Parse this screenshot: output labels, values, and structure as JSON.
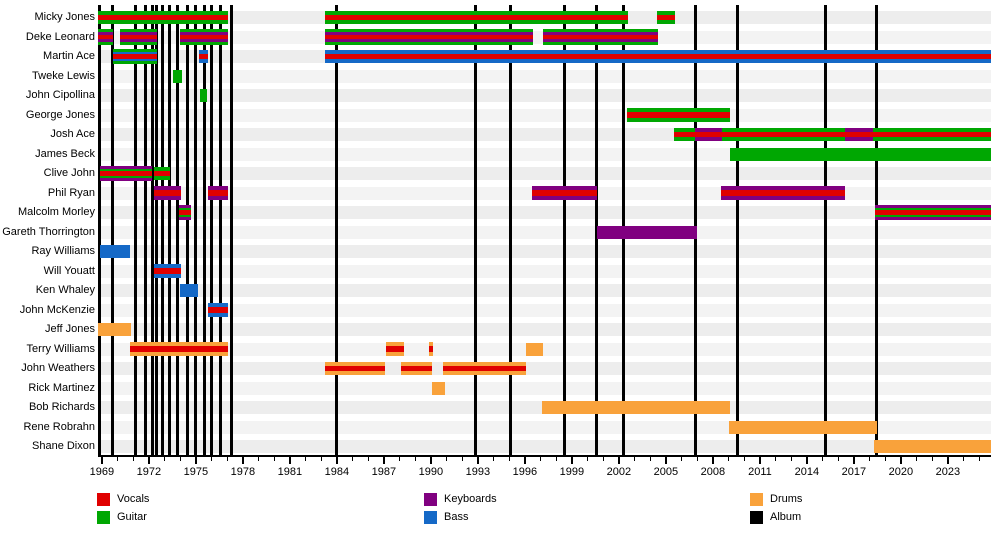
{
  "chart_data": {
    "type": "timeline_gantt",
    "title": "",
    "xlabel": "",
    "ylabel": "",
    "axis": {
      "start": 1968.75,
      "end": 2025.75,
      "major_tick_years": [
        1969,
        1972,
        1975,
        1978,
        1981,
        1984,
        1987,
        1990,
        1993,
        1996,
        1999,
        2002,
        2005,
        2008,
        2011,
        2014,
        2017,
        2020,
        2023
      ],
      "minor_tick_step": 1,
      "grid": false
    },
    "colors": {
      "vocals": "#e00000",
      "guitar": "#00a702",
      "keyboards": "#800080",
      "bass": "#1569c7",
      "drums": "#f9a23b",
      "album": "#000000"
    },
    "album_release_years": [
      1968.85,
      1969.65,
      1971.15,
      1971.8,
      1972.2,
      1972.5,
      1972.85,
      1973.3,
      1973.8,
      1974.45,
      1974.95,
      1975.55,
      1976.0,
      1976.55,
      1977.3,
      1984.0,
      1992.85,
      1995.1,
      1998.55,
      2000.6,
      2002.3,
      2006.9,
      2009.55,
      2015.2,
      2018.45
    ],
    "members": [
      {
        "name": "Micky Jones",
        "stints": [
          {
            "start": 1968.75,
            "end": 1977.05,
            "stripes": [
              "guitar",
              "vocals",
              "guitar"
            ]
          },
          {
            "start": 1983.25,
            "end": 2002.55,
            "stripes": [
              "guitar",
              "vocals",
              "guitar"
            ]
          },
          {
            "start": 2004.4,
            "end": 2005.6,
            "stripes": [
              "guitar",
              "vocals",
              "guitar"
            ]
          }
        ]
      },
      {
        "name": "Deke Leonard",
        "stints": [
          {
            "start": 1968.75,
            "end": 1969.7,
            "stripes": [
              "guitar",
              "keyboards",
              "vocals",
              "keyboards",
              "guitar"
            ]
          },
          {
            "start": 1970.15,
            "end": 1972.5,
            "stripes": [
              "guitar",
              "keyboards",
              "vocals",
              "keyboards",
              "guitar"
            ]
          },
          {
            "start": 1974.0,
            "end": 1977.05,
            "stripes": [
              "guitar",
              "keyboards",
              "vocals",
              "keyboards",
              "guitar"
            ]
          },
          {
            "start": 1983.25,
            "end": 1996.5,
            "stripes": [
              "guitar",
              "keyboards",
              "vocals",
              "keyboards",
              "guitar"
            ]
          },
          {
            "start": 1997.15,
            "end": 2004.5,
            "stripes": [
              "guitar",
              "keyboards",
              "vocals",
              "keyboards",
              "guitar"
            ]
          }
        ]
      },
      {
        "name": "Martin Ace",
        "stints": [
          {
            "start": 1969.7,
            "end": 1972.5,
            "stripes": [
              "guitar",
              "bass",
              "vocals",
              "bass",
              "guitar"
            ]
          },
          {
            "start": 1975.2,
            "end": 1975.8,
            "stripes": [
              "bass",
              "vocals",
              "bass"
            ]
          },
          {
            "start": 1983.25,
            "end": 2025.75,
            "stripes": [
              "bass",
              "vocals",
              "bass"
            ]
          }
        ]
      },
      {
        "name": "Tweke Lewis",
        "stints": [
          {
            "start": 1973.55,
            "end": 1974.1,
            "stripes": [
              "guitar"
            ]
          }
        ]
      },
      {
        "name": "John Cipollina",
        "stints": [
          {
            "start": 1975.25,
            "end": 1975.7,
            "stripes": [
              "guitar"
            ]
          }
        ]
      },
      {
        "name": "George Jones",
        "stints": [
          {
            "start": 2002.5,
            "end": 2009.1,
            "stripes": [
              "guitar",
              "vocals",
              "guitar"
            ]
          }
        ]
      },
      {
        "name": "Josh Ace",
        "stints": [
          {
            "start": 2005.5,
            "end": 2025.75,
            "stripes": [
              "guitar",
              "vocals",
              "guitar"
            ]
          },
          {
            "start": 2006.85,
            "end": 2008.55,
            "stripes": [
              "keyboards",
              "vocals",
              "keyboards"
            ]
          },
          {
            "start": 2016.4,
            "end": 2018.2,
            "stripes": [
              "keyboards",
              "vocals",
              "keyboards"
            ]
          }
        ]
      },
      {
        "name": "James Beck",
        "stints": [
          {
            "start": 2009.1,
            "end": 2025.75,
            "stripes": [
              "guitar"
            ]
          }
        ]
      },
      {
        "name": "Clive John",
        "stints": [
          {
            "start": 1968.85,
            "end": 1972.2,
            "stripes": [
              "keyboards",
              "guitar",
              "vocals",
              "guitar",
              "keyboards"
            ]
          },
          {
            "start": 1972.35,
            "end": 1973.35,
            "stripes": [
              "guitar",
              "vocals",
              "guitar"
            ]
          }
        ]
      },
      {
        "name": "Phil Ryan",
        "stints": [
          {
            "start": 1972.35,
            "end": 1974.05,
            "stripes": [
              "keyboards",
              "vocals",
              "keyboards"
            ]
          },
          {
            "start": 1975.8,
            "end": 1977.05,
            "stripes": [
              "keyboards",
              "vocals",
              "keyboards"
            ]
          },
          {
            "start": 1996.45,
            "end": 2000.6,
            "stripes": [
              "keyboards",
              "vocals",
              "keyboards"
            ]
          },
          {
            "start": 2008.5,
            "end": 2016.4,
            "stripes": [
              "keyboards",
              "vocals",
              "keyboards"
            ]
          }
        ]
      },
      {
        "name": "Malcolm Morley",
        "stints": [
          {
            "start": 1973.9,
            "end": 1974.7,
            "stripes": [
              "keyboards",
              "guitar",
              "vocals",
              "guitar",
              "keyboards"
            ]
          },
          {
            "start": 2018.35,
            "end": 2025.75,
            "stripes": [
              "keyboards",
              "guitar",
              "vocals",
              "guitar",
              "keyboards"
            ]
          }
        ]
      },
      {
        "name": "Gareth Thorrington",
        "stints": [
          {
            "start": 2000.6,
            "end": 2007.0,
            "stripes": [
              "keyboards"
            ]
          }
        ]
      },
      {
        "name": "Ray Williams",
        "stints": [
          {
            "start": 1968.85,
            "end": 1970.8,
            "stripes": [
              "bass"
            ]
          }
        ]
      },
      {
        "name": "Will Youatt",
        "stints": [
          {
            "start": 1972.35,
            "end": 1974.05,
            "stripes": [
              "bass",
              "vocals",
              "bass"
            ]
          }
        ]
      },
      {
        "name": "Ken Whaley",
        "stints": [
          {
            "start": 1974.0,
            "end": 1975.15,
            "stripes": [
              "bass"
            ]
          }
        ]
      },
      {
        "name": "John McKenzie",
        "stints": [
          {
            "start": 1975.8,
            "end": 1977.05,
            "stripes": [
              "bass",
              "vocals",
              "bass"
            ]
          }
        ]
      },
      {
        "name": "Jeff Jones",
        "stints": [
          {
            "start": 1968.75,
            "end": 1970.85,
            "stripes": [
              "drums"
            ]
          }
        ]
      },
      {
        "name": "Terry Williams",
        "stints": [
          {
            "start": 1970.8,
            "end": 1977.05,
            "stripes": [
              "drums",
              "vocals",
              "drums"
            ]
          },
          {
            "start": 1987.15,
            "end": 1988.3,
            "stripes": [
              "drums",
              "vocals",
              "drums"
            ]
          },
          {
            "start": 1989.9,
            "end": 1990.15,
            "stripes": [
              "drums",
              "vocals",
              "drums"
            ]
          },
          {
            "start": 1996.05,
            "end": 1997.15,
            "stripes": [
              "drums"
            ]
          }
        ]
      },
      {
        "name": "John Weathers",
        "stints": [
          {
            "start": 1983.25,
            "end": 1987.05,
            "stripes": [
              "drums",
              "vocals",
              "drums"
            ]
          },
          {
            "start": 1988.1,
            "end": 1990.1,
            "stripes": [
              "drums",
              "vocals",
              "drums"
            ]
          },
          {
            "start": 1990.75,
            "end": 1996.1,
            "stripes": [
              "drums",
              "vocals",
              "drums"
            ]
          }
        ]
      },
      {
        "name": "Rick Martinez",
        "stints": [
          {
            "start": 1990.05,
            "end": 1990.9,
            "stripes": [
              "drums"
            ]
          }
        ]
      },
      {
        "name": "Bob Richards",
        "stints": [
          {
            "start": 1997.1,
            "end": 2009.1,
            "stripes": [
              "drums"
            ]
          }
        ]
      },
      {
        "name": "Rene Robrahn",
        "stints": [
          {
            "start": 2009.0,
            "end": 2018.45,
            "stripes": [
              "drums"
            ]
          }
        ]
      },
      {
        "name": "Shane Dixon",
        "stints": [
          {
            "start": 2018.3,
            "end": 2025.75,
            "stripes": [
              "drums"
            ]
          }
        ]
      }
    ],
    "legend": {
      "position": "bottom",
      "columns": [
        {
          "items": [
            {
              "label": "Vocals",
              "color_key": "vocals"
            },
            {
              "label": "Guitar",
              "color_key": "guitar"
            }
          ]
        },
        {
          "items": [
            {
              "label": "Keyboards",
              "color_key": "keyboards"
            },
            {
              "label": "Bass",
              "color_key": "bass"
            }
          ]
        },
        {
          "items": [
            {
              "label": "Drums",
              "color_key": "drums"
            },
            {
              "label": "Album",
              "color_key": "album"
            }
          ]
        }
      ]
    }
  }
}
